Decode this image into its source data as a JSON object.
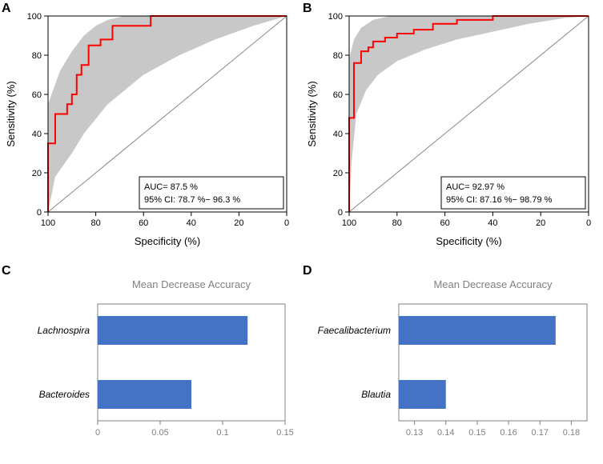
{
  "panels": {
    "A": {
      "label": "A"
    },
    "B": {
      "label": "B"
    },
    "C": {
      "label": "C"
    },
    "D": {
      "label": "D"
    }
  },
  "roc_A": {
    "type": "line",
    "xlabel": "Specificity (%)",
    "ylabel": "Sensitivity (%)",
    "xticks": [
      100,
      80,
      60,
      40,
      20,
      0
    ],
    "yticks": [
      0,
      20,
      40,
      60,
      80,
      100
    ],
    "xlim": [
      100,
      0
    ],
    "ylim": [
      0,
      100
    ],
    "line_color": "#ff0000",
    "line_width": 2,
    "ci_fill": "#c8c8c8",
    "grid_color": "#000000",
    "diag_color": "#888888",
    "background_color": "#ffffff",
    "label_fontsize": 13,
    "tick_fontsize": 11,
    "legend": {
      "line1": "AUC= 87.5 %",
      "line2": "95% CI: 78.7 %− 96.3 %"
    },
    "roc_points": [
      [
        100,
        0
      ],
      [
        100,
        35
      ],
      [
        97,
        35
      ],
      [
        97,
        50
      ],
      [
        92,
        50
      ],
      [
        92,
        55
      ],
      [
        90,
        55
      ],
      [
        90,
        60
      ],
      [
        88,
        60
      ],
      [
        88,
        70
      ],
      [
        86,
        70
      ],
      [
        86,
        75
      ],
      [
        83,
        75
      ],
      [
        83,
        85
      ],
      [
        78,
        85
      ],
      [
        78,
        88
      ],
      [
        73,
        88
      ],
      [
        73,
        95
      ],
      [
        57,
        95
      ],
      [
        57,
        100
      ],
      [
        0,
        100
      ]
    ],
    "ci_upper": [
      [
        100,
        0
      ],
      [
        100,
        55
      ],
      [
        95,
        72
      ],
      [
        90,
        82
      ],
      [
        85,
        90
      ],
      [
        80,
        95
      ],
      [
        75,
        98
      ],
      [
        68,
        100
      ],
      [
        0,
        100
      ]
    ],
    "ci_lower": [
      [
        100,
        0
      ],
      [
        97,
        18
      ],
      [
        90,
        30
      ],
      [
        85,
        40
      ],
      [
        75,
        55
      ],
      [
        60,
        70
      ],
      [
        45,
        80
      ],
      [
        30,
        88
      ],
      [
        14,
        95
      ],
      [
        0,
        100
      ]
    ]
  },
  "roc_B": {
    "type": "line",
    "xlabel": "Specificity (%)",
    "ylabel": "Sensitivity (%)",
    "xticks": [
      100,
      80,
      60,
      40,
      20,
      0
    ],
    "yticks": [
      0,
      20,
      40,
      60,
      80,
      100
    ],
    "xlim": [
      100,
      0
    ],
    "ylim": [
      0,
      100
    ],
    "line_color": "#ff0000",
    "line_width": 2,
    "ci_fill": "#c8c8c8",
    "grid_color": "#000000",
    "diag_color": "#888888",
    "background_color": "#ffffff",
    "label_fontsize": 13,
    "tick_fontsize": 11,
    "legend": {
      "line1": "AUC= 92.97 %",
      "line2": "95% CI: 87.16 %− 98.79 %"
    },
    "roc_points": [
      [
        100,
        0
      ],
      [
        100,
        48
      ],
      [
        98,
        48
      ],
      [
        98,
        76
      ],
      [
        95,
        76
      ],
      [
        95,
        82
      ],
      [
        92,
        82
      ],
      [
        92,
        84
      ],
      [
        90,
        84
      ],
      [
        90,
        87
      ],
      [
        85,
        87
      ],
      [
        85,
        89
      ],
      [
        80,
        89
      ],
      [
        80,
        91
      ],
      [
        73,
        91
      ],
      [
        73,
        93
      ],
      [
        65,
        93
      ],
      [
        65,
        96
      ],
      [
        55,
        96
      ],
      [
        55,
        98
      ],
      [
        40,
        98
      ],
      [
        40,
        100
      ],
      [
        0,
        100
      ]
    ],
    "ci_upper": [
      [
        100,
        0
      ],
      [
        100,
        78
      ],
      [
        98,
        88
      ],
      [
        95,
        94
      ],
      [
        90,
        98
      ],
      [
        83,
        100
      ],
      [
        0,
        100
      ]
    ],
    "ci_lower": [
      [
        100,
        0
      ],
      [
        99,
        25
      ],
      [
        97,
        50
      ],
      [
        93,
        62
      ],
      [
        88,
        70
      ],
      [
        80,
        77
      ],
      [
        68,
        83
      ],
      [
        55,
        88
      ],
      [
        40,
        92
      ],
      [
        25,
        96
      ],
      [
        10,
        99
      ],
      [
        0,
        100
      ]
    ]
  },
  "bar_C": {
    "type": "bar",
    "title": "Mean Decrease Accuracy",
    "bar_color": "#4472c4",
    "border_color": "#808080",
    "xticks": [
      0,
      0.05,
      0.1,
      0.15
    ],
    "xlim": [
      0,
      0.15
    ],
    "title_fontsize": 13,
    "label_fontsize": 12,
    "tick_fontsize": 11,
    "items": [
      {
        "label": "Lachnospira",
        "value": 0.12
      },
      {
        "label": "Bacteroides",
        "value": 0.075
      }
    ]
  },
  "bar_D": {
    "type": "bar",
    "title": "Mean Decrease Accuracy",
    "bar_color": "#4472c4",
    "border_color": "#808080",
    "xticks": [
      0.13,
      0.14,
      0.15,
      0.16,
      0.17,
      0.18
    ],
    "xlim": [
      0.125,
      0.185
    ],
    "title_fontsize": 13,
    "label_fontsize": 12,
    "tick_fontsize": 11,
    "items": [
      {
        "label": "Faecalibacterium",
        "value": 0.175
      },
      {
        "label": "Blautia",
        "value": 0.14
      }
    ]
  }
}
